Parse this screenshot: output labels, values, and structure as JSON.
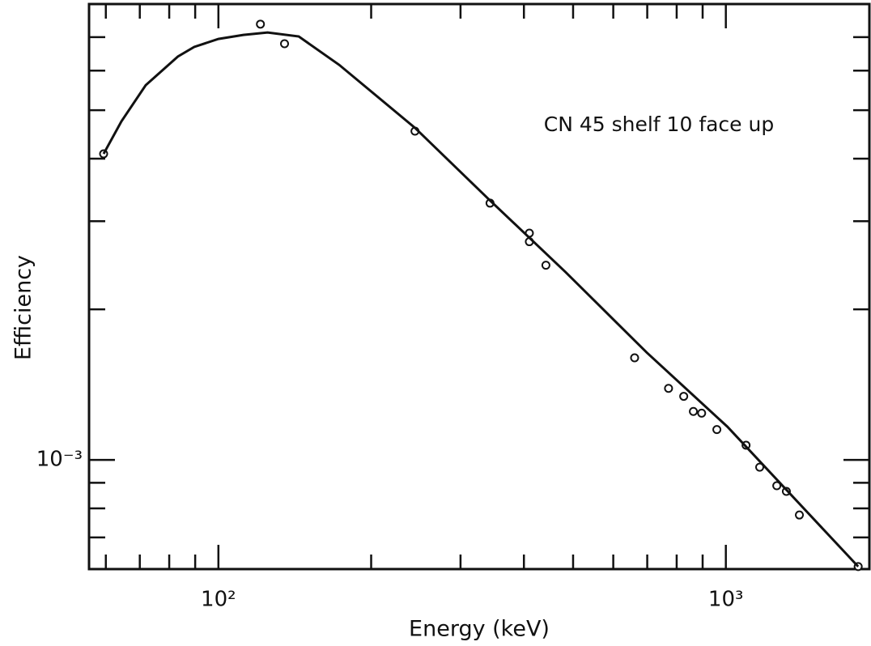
{
  "chart_data": {
    "type": "scatter",
    "annotation": "CN 45 shelf 10 face up",
    "x_label": "Energy (keV)",
    "y_label": "Efficiency",
    "log_x": true,
    "log_y": true,
    "xlim": [
      55.6,
      1918
    ],
    "ylim": [
      0.000605,
      0.00815
    ],
    "xticks": [
      {
        "value": 100,
        "label": "10²"
      },
      {
        "value": 1000,
        "label": "10³"
      }
    ],
    "xminorticks": [
      60,
      70,
      80,
      90,
      200,
      300,
      400,
      500,
      600,
      700,
      800,
      900
    ],
    "yticks": [
      {
        "value": 0.001,
        "label": "10⁻³"
      }
    ],
    "yminorticks": [
      0.0007,
      0.0008,
      0.0009,
      0.002,
      0.003,
      0.004,
      0.005,
      0.006,
      0.007
    ],
    "color": "#111111",
    "series": [
      {
        "x": [
          59.4,
          121,
          135,
          244,
          343,
          410,
          410,
          442,
          661,
          771,
          826,
          863,
          896,
          960,
          1096,
          1166,
          1260,
          1316,
          1396,
          1823
        ],
        "values": [
          0.00409,
          0.00743,
          0.00679,
          0.00454,
          0.00326,
          0.00284,
          0.00273,
          0.00245,
          0.0016,
          0.00139,
          0.00134,
          0.00125,
          0.00124,
          0.00115,
          0.00107,
          0.000967,
          0.000888,
          0.000865,
          0.000776,
          0.000612
        ]
      },
      {
        "line": true,
        "x": [
          59.4,
          64.4,
          71.9,
          83.2,
          89.6,
          100,
          112,
          125,
          144,
          173,
          244,
          343,
          484,
          698,
          1007,
          1823
        ],
        "values": [
          0.00409,
          0.00475,
          0.00561,
          0.0064,
          0.00669,
          0.00694,
          0.00707,
          0.00715,
          0.00702,
          0.00616,
          0.00461,
          0.0033,
          0.00237,
          0.00164,
          0.001165,
          0.000612
        ]
      }
    ]
  }
}
